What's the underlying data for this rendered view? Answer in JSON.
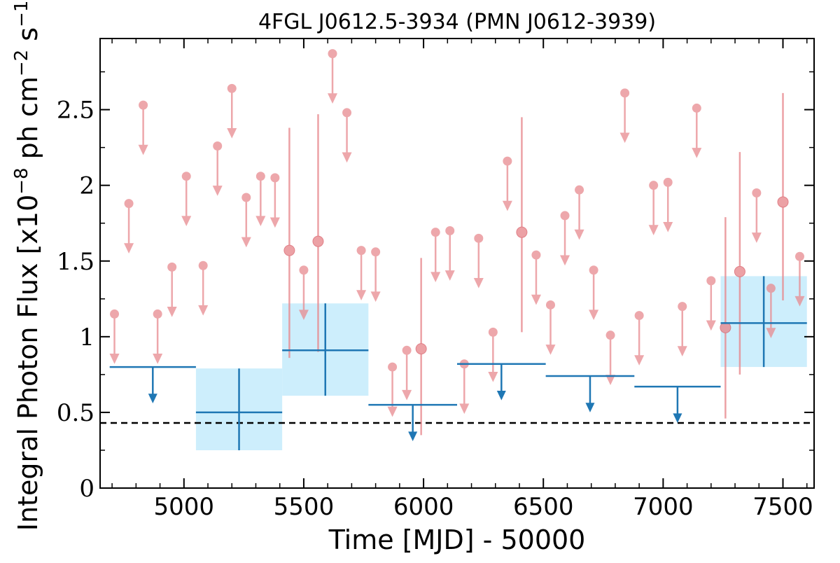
{
  "chart_data": {
    "type": "scatter",
    "title": "4FGL J0612.5-3934 (PMN J0612-3939)",
    "xlabel": "Time [MJD] - 50000",
    "ylabel_parts": {
      "prefix": "Integral Photon Flux [x10",
      "exp1": "−8",
      "mid": " ph cm",
      "exp2": "−2",
      "mid2": " s",
      "exp3": "−1",
      "suffix": "]"
    },
    "xlim": [
      4650,
      7630
    ],
    "ylim": [
      0,
      2.97
    ],
    "xticks": [
      5000,
      5500,
      6000,
      6500,
      7000,
      7500
    ],
    "xtick_labels": [
      "5000",
      "5500",
      "6000",
      "6500",
      "7000",
      "7500"
    ],
    "yticks": [
      0,
      0.5,
      1,
      1.5,
      2,
      2.5
    ],
    "ytick_labels": [
      "0",
      "0.5",
      "1",
      "1.5",
      "2",
      "2.5"
    ],
    "reference_level": 0.43,
    "colors": {
      "short_bin": "#e88a8f",
      "long_bin": "#1f77b4",
      "long_bin_fill": "#cdeefc",
      "reference": "#000000"
    },
    "short_bin_upper_limits": [
      [
        4710,
        1.15
      ],
      [
        4770,
        1.88
      ],
      [
        4830,
        2.53
      ],
      [
        4890,
        1.15
      ],
      [
        4950,
        1.46
      ],
      [
        5010,
        2.06
      ],
      [
        5080,
        1.47
      ],
      [
        5140,
        2.26
      ],
      [
        5200,
        2.64
      ],
      [
        5260,
        1.92
      ],
      [
        5320,
        2.06
      ],
      [
        5380,
        2.05
      ],
      [
        5500,
        1.44
      ],
      [
        5620,
        2.87
      ],
      [
        5680,
        2.48
      ],
      [
        5740,
        1.57
      ],
      [
        5800,
        1.56
      ],
      [
        5870,
        0.8
      ],
      [
        5930,
        0.91
      ],
      [
        6050,
        1.69
      ],
      [
        6110,
        1.7
      ],
      [
        6170,
        0.82
      ],
      [
        6230,
        1.65
      ],
      [
        6290,
        1.03
      ],
      [
        6350,
        2.16
      ],
      [
        6470,
        1.54
      ],
      [
        6530,
        1.21
      ],
      [
        6590,
        1.8
      ],
      [
        6650,
        1.97
      ],
      [
        6710,
        1.44
      ],
      [
        6780,
        1.01
      ],
      [
        6840,
        2.61
      ],
      [
        6900,
        1.14
      ],
      [
        6960,
        2.0
      ],
      [
        7020,
        2.02
      ],
      [
        7080,
        1.2
      ],
      [
        7140,
        2.51
      ],
      [
        7200,
        1.37
      ],
      [
        7390,
        1.95
      ],
      [
        7450,
        1.32
      ],
      [
        7570,
        1.53
      ]
    ],
    "short_bin_detections": [
      [
        5440,
        1.57,
        0.86,
        2.38
      ],
      [
        5560,
        1.63,
        0.9,
        2.47
      ],
      [
        5990,
        0.92,
        0.35,
        1.52
      ],
      [
        6410,
        1.69,
        1.03,
        2.45
      ],
      [
        7260,
        1.06,
        0.46,
        1.79
      ],
      [
        7320,
        1.43,
        0.75,
        2.22
      ],
      [
        7500,
        1.89,
        1.24,
        2.61
      ]
    ],
    "long_bin_upper_limits": [
      [
        4690,
        5050,
        0.8
      ],
      [
        6140,
        6510,
        0.82
      ],
      [
        6510,
        6880,
        0.74
      ],
      [
        6880,
        7240,
        0.67
      ]
    ],
    "long_bin_upper_limits_low": [
      [
        5770,
        6140,
        0.55
      ]
    ],
    "long_bin_detections": [
      [
        5050,
        5410,
        0.5,
        0.25,
        0.79
      ],
      [
        5410,
        5770,
        0.91,
        0.61,
        1.22
      ],
      [
        7240,
        7600,
        1.09,
        0.8,
        1.4
      ]
    ]
  }
}
